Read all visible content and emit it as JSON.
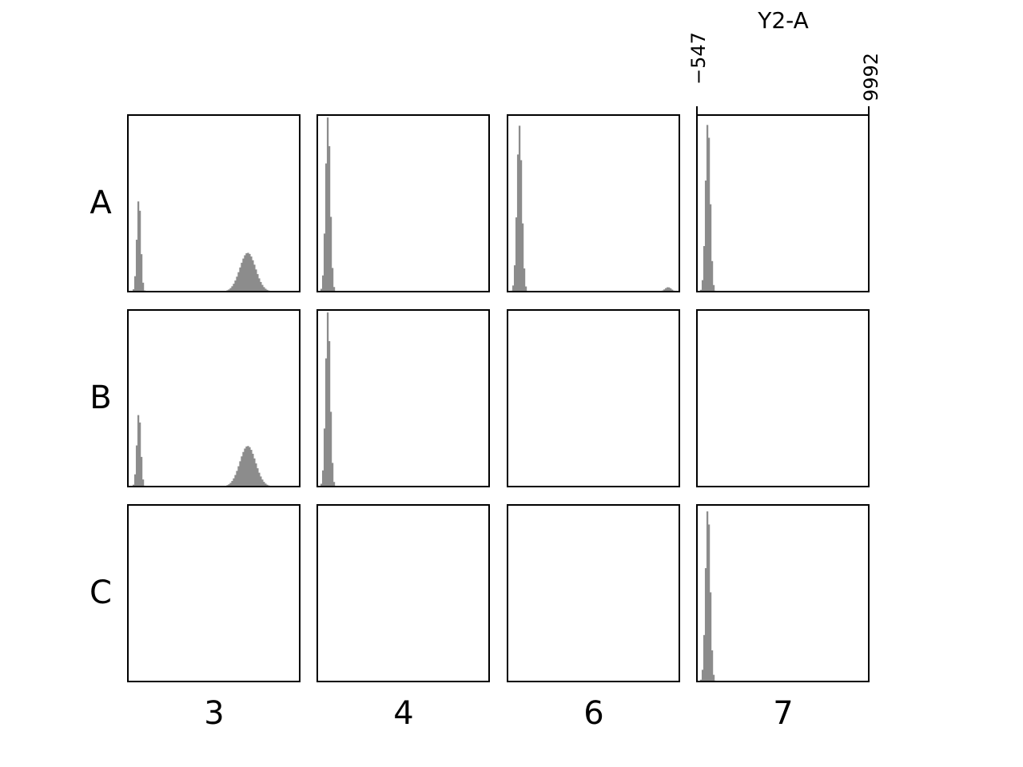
{
  "chart_data": {
    "type": "histogram-grid",
    "axis_title": "Y2-A",
    "x_range": [
      -547,
      9992
    ],
    "x_range_labels": [
      "−547",
      "9992"
    ],
    "rows": [
      "A",
      "B",
      "C"
    ],
    "columns": [
      "3",
      "4",
      "6",
      "7"
    ],
    "bar_color": "#8c8c8c",
    "panels": [
      {
        "row": "A",
        "col": "3",
        "empty": false,
        "peaks": [
          {
            "center": 120,
            "width": 120,
            "height": 0.53
          },
          {
            "center": 6800,
            "width": 480,
            "height": 0.22
          }
        ]
      },
      {
        "row": "A",
        "col": "4",
        "empty": false,
        "peaks": [
          {
            "center": 100,
            "width": 140,
            "height": 0.99
          }
        ]
      },
      {
        "row": "A",
        "col": "6",
        "empty": false,
        "peaks": [
          {
            "center": 180,
            "width": 150,
            "height": 0.94
          },
          {
            "center": 9300,
            "width": 200,
            "height": 0.025
          }
        ]
      },
      {
        "row": "A",
        "col": "7",
        "empty": false,
        "peaks": [
          {
            "center": 120,
            "width": 140,
            "height": 0.97
          }
        ]
      },
      {
        "row": "B",
        "col": "3",
        "empty": false,
        "peaks": [
          {
            "center": 120,
            "width": 120,
            "height": 0.42
          },
          {
            "center": 6800,
            "width": 480,
            "height": 0.23
          }
        ]
      },
      {
        "row": "B",
        "col": "4",
        "empty": false,
        "peaks": [
          {
            "center": 100,
            "width": 140,
            "height": 0.99
          }
        ]
      },
      {
        "row": "B",
        "col": "6",
        "empty": true,
        "peaks": []
      },
      {
        "row": "B",
        "col": "7",
        "empty": true,
        "peaks": []
      },
      {
        "row": "C",
        "col": "3",
        "empty": true,
        "peaks": []
      },
      {
        "row": "C",
        "col": "4",
        "empty": true,
        "peaks": []
      },
      {
        "row": "C",
        "col": "6",
        "empty": true,
        "peaks": []
      },
      {
        "row": "C",
        "col": "7",
        "empty": false,
        "peaks": [
          {
            "center": 120,
            "width": 140,
            "height": 0.99
          }
        ]
      }
    ]
  }
}
